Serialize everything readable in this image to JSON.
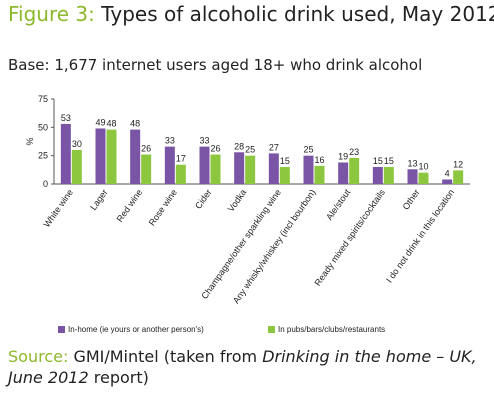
{
  "header": {
    "title_lead": "Figure 3:",
    "title_rest": "Types of alcoholic drink used, May 2012",
    "base": "Base: 1,677 internet users aged 18+ who drink alcohol"
  },
  "footer": {
    "source_lead": "Source:",
    "source_text": "GMI/Mintel (taken from",
    "source_italic": "Drinking in the home – UK, June 2012",
    "source_end": "report)"
  },
  "colors": {
    "series1": "#7a55a6",
    "series2": "#8dc63f",
    "accent": "#8cb92b"
  },
  "chart_data": {
    "type": "bar",
    "ylabel": "%",
    "ylim": [
      0,
      75
    ],
    "yticks": [
      0,
      25,
      50,
      75
    ],
    "grid": false,
    "legend_position": "bottom",
    "categories": [
      "White wine",
      "Lager",
      "Red wine",
      "Rose wine",
      "Cider",
      "Vodka",
      "Champagne/other sparkling wine",
      "Any whisky/whiskey (incl bourbon)",
      "Ale/stout",
      "Ready mixed spirits/cocktails",
      "Other",
      "I do not drink in this location"
    ],
    "series": [
      {
        "name": "In-home (ie yours or another person's)",
        "values": [
          53,
          49,
          48,
          33,
          33,
          28,
          27,
          25,
          19,
          15,
          13,
          4
        ]
      },
      {
        "name": "In pubs/bars/clubs/restaurants",
        "values": [
          30,
          48,
          26,
          17,
          26,
          25,
          15,
          16,
          23,
          15,
          10,
          12
        ]
      }
    ]
  }
}
